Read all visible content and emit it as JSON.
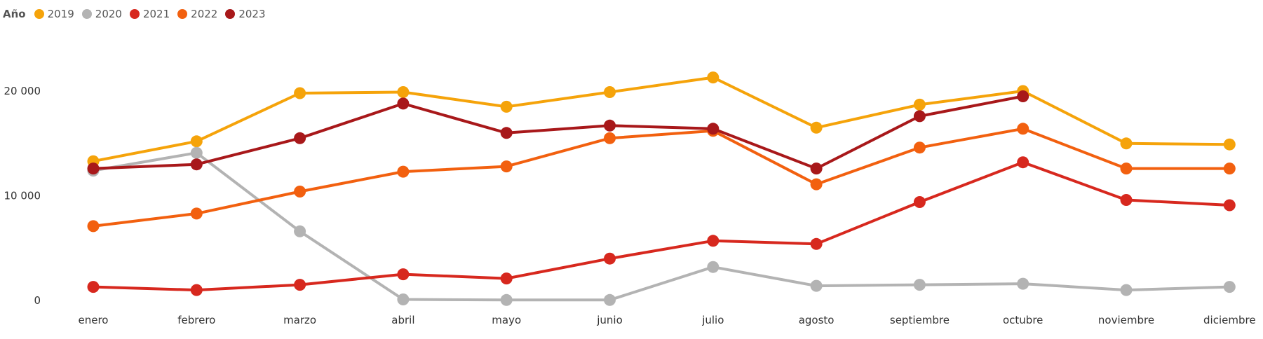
{
  "legend": {
    "title": "Año"
  },
  "chart_data": {
    "type": "line",
    "title": "",
    "xlabel": "",
    "ylabel": "",
    "categories": [
      "enero",
      "febrero",
      "marzo",
      "abril",
      "mayo",
      "junio",
      "julio",
      "agosto",
      "septiembre",
      "octubre",
      "noviembre",
      "diciembre"
    ],
    "y_ticks": [
      {
        "value": 0,
        "label": "0"
      },
      {
        "value": 10000,
        "label": "10 000"
      },
      {
        "value": 20000,
        "label": "20 000"
      }
    ],
    "ylim": [
      0,
      28500
    ],
    "grid": false,
    "legend_position": "top-left",
    "series": [
      {
        "name": "2019",
        "color": "#F5A30A",
        "values": [
          13300,
          15200,
          19800,
          19900,
          18500,
          19900,
          21300,
          16500,
          18700,
          20000,
          15000,
          14900
        ]
      },
      {
        "name": "2020",
        "color": "#B3B3B3",
        "values": [
          12400,
          14100,
          6600,
          100,
          50,
          50,
          3200,
          1400,
          1500,
          1600,
          1000,
          1300
        ]
      },
      {
        "name": "2021",
        "color": "#D7281E",
        "values": [
          1300,
          1000,
          1500,
          2500,
          2100,
          4000,
          5700,
          5400,
          9400,
          13200,
          9600,
          9100
        ]
      },
      {
        "name": "2022",
        "color": "#F2600F",
        "values": [
          7100,
          8300,
          10400,
          12300,
          12800,
          15500,
          16200,
          11100,
          14600,
          16400,
          12600,
          12600
        ]
      },
      {
        "name": "2023",
        "color": "#A8181A",
        "values": [
          12600,
          13000,
          15500,
          18800,
          16000,
          16700,
          16400,
          12600,
          17600,
          19500,
          null,
          null
        ]
      }
    ]
  }
}
